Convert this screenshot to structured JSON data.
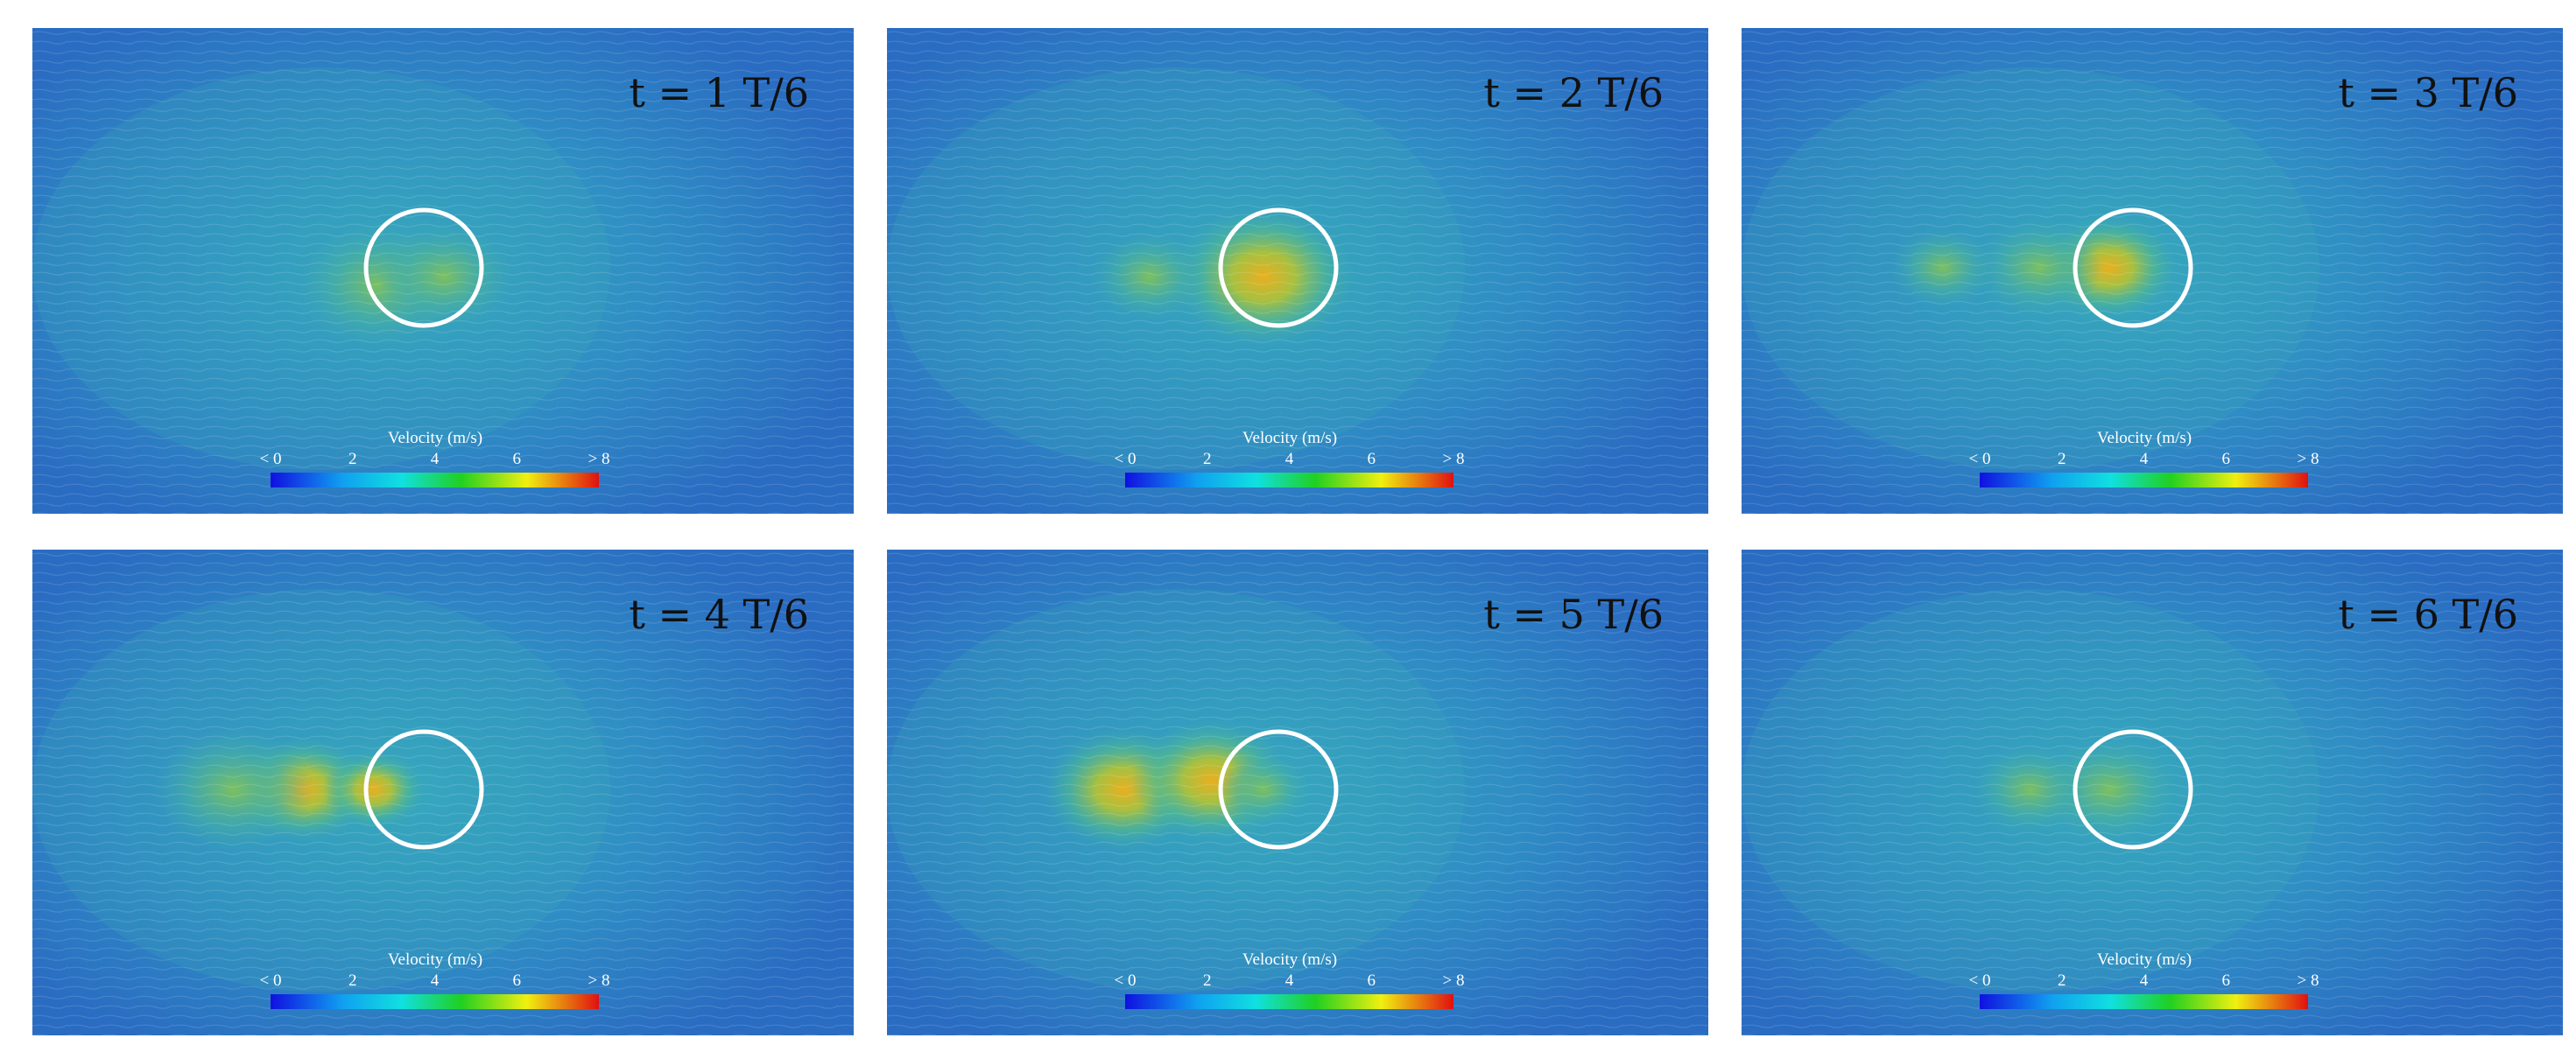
{
  "panels": [
    {
      "time_label": "t = 1 T/6"
    },
    {
      "time_label": "t = 2 T/6"
    },
    {
      "time_label": "t = 3 T/6"
    },
    {
      "time_label": "t = 4 T/6"
    },
    {
      "time_label": "t = 5 T/6"
    },
    {
      "time_label": "t = 6 T/6"
    }
  ],
  "colorbar": {
    "title": "Velocity (m/s)",
    "ticks": [
      "< 0",
      "2",
      "4",
      "6",
      "> 8"
    ]
  }
}
